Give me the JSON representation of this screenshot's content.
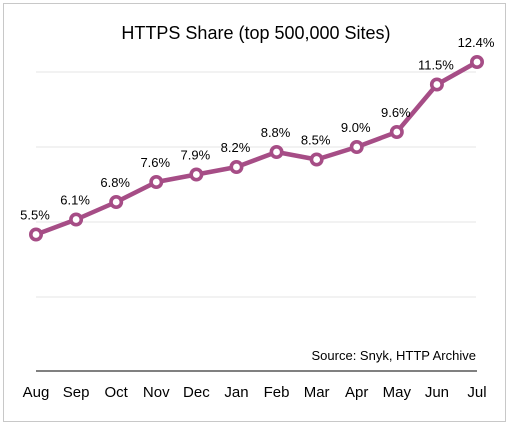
{
  "chart_data": {
    "type": "line",
    "title": "HTTPS Share (top 500,000 Sites)",
    "xlabel": "",
    "ylabel": "",
    "categories": [
      "Aug",
      "Sep",
      "Oct",
      "Nov",
      "Dec",
      "Jan",
      "Feb",
      "Mar",
      "Apr",
      "May",
      "Jun",
      "Jul"
    ],
    "series": [
      {
        "values": [
          5.5,
          6.1,
          6.8,
          7.6,
          7.9,
          8.2,
          8.8,
          8.5,
          9.0,
          9.6,
          11.5,
          12.4
        ],
        "labels": [
          "5.5%",
          "6.1%",
          "6.8%",
          "7.6%",
          "7.9%",
          "8.2%",
          "8.8%",
          "8.5%",
          "9.0%",
          "9.6%",
          "11.5%",
          "12.4%"
        ]
      }
    ],
    "ylim": [
      0,
      14
    ],
    "grid": true,
    "legend": "none",
    "annotation": "Source: Snyk, HTTP Archive",
    "colors": {
      "line": "#a64d86",
      "marker_fill": "#ffffff",
      "grid": "#e6e6e6",
      "axis": "#000000"
    }
  }
}
